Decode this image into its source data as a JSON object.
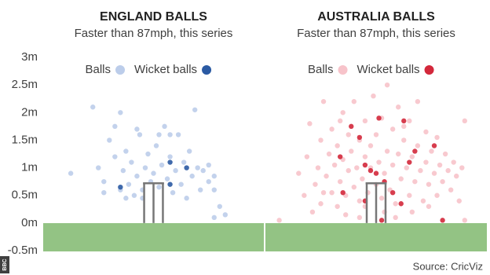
{
  "source": "Source: CricViz",
  "logo": "BBC",
  "chart_data": [
    {
      "type": "scatter",
      "title": "ENGLAND BALLS",
      "subtitle": "Faster than 87mph, this series",
      "xlim": [
        -2,
        2
      ],
      "ylim": [
        -0.5,
        3
      ],
      "yticks": [
        {
          "value": 3,
          "label": "3m"
        },
        {
          "value": 2.5,
          "label": "2.5m"
        },
        {
          "value": 2,
          "label": "2m"
        },
        {
          "value": 1.5,
          "label": "1.5m"
        },
        {
          "value": 1,
          "label": "1m"
        },
        {
          "value": 0.5,
          "label": "0.5m"
        },
        {
          "value": 0,
          "label": "0m"
        },
        {
          "value": -0.5,
          "label": "-0.5m"
        }
      ],
      "series": [
        {
          "name": "Balls",
          "color": "#bccdea",
          "x": [
            -1.5,
            -1.1,
            -0.9,
            -0.8,
            -0.7,
            -0.6,
            -0.55,
            -0.5,
            -0.45,
            -0.4,
            -0.35,
            -0.3,
            -0.25,
            -0.2,
            -0.15,
            -0.1,
            -0.05,
            0,
            0.05,
            0.1,
            0.15,
            0.2,
            0.25,
            0.3,
            0.35,
            0.4,
            0.45,
            0.5,
            0.55,
            0.6,
            0.65,
            0.7,
            0.75,
            0.8,
            0.85,
            0.9,
            1.0,
            1.0,
            1.1,
            1.2,
            1.3,
            1.1,
            -1.0,
            -0.9,
            -0.7,
            -0.6,
            -0.3,
            0.3,
            0.1,
            -0.2,
            1.1,
            -0.5
          ],
          "values": [
            0.9,
            2.1,
            0.55,
            1.5,
            1.75,
            2.0,
            0.95,
            1.3,
            0.7,
            1.1,
            0.5,
            0.85,
            1.6,
            0.6,
            1.0,
            1.25,
            0.75,
            0.9,
            1.4,
            0.65,
            1.05,
            1.75,
            0.8,
            1.2,
            0.55,
            0.95,
            1.6,
            0.7,
            1.1,
            0.45,
            1.3,
            0.85,
            2.05,
            1.0,
            0.6,
            0.95,
            0.75,
            1.05,
            0.85,
            0.3,
            0.15,
            0.6,
            1.0,
            0.75,
            1.2,
            0.6,
            1.7,
            1.6,
            1.6,
            0.45,
            0.1,
            0.45
          ]
        },
        {
          "name": "Wicket balls",
          "color": "#2b5aa3",
          "x": [
            0.3,
            0.6,
            -0.6,
            0.3
          ],
          "values": [
            1.1,
            1.0,
            0.65,
            0.7
          ]
        }
      ]
    },
    {
      "type": "scatter",
      "title": "AUSTRALIA BALLS",
      "subtitle": "Faster than 87mph, this series",
      "xlim": [
        -2,
        2
      ],
      "ylim": [
        -0.5,
        3
      ],
      "series": [
        {
          "name": "Balls",
          "color": "#f7c3ca",
          "x": [
            -1.75,
            -1.4,
            -1.3,
            -1.25,
            -1.2,
            -1.1,
            -1.05,
            -1.0,
            -1.0,
            -0.95,
            -0.9,
            -0.85,
            -0.8,
            -0.8,
            -0.75,
            -0.7,
            -0.7,
            -0.65,
            -0.6,
            -0.6,
            -0.55,
            -0.5,
            -0.5,
            -0.45,
            -0.4,
            -0.4,
            -0.35,
            -0.3,
            -0.3,
            -0.25,
            -0.2,
            -0.2,
            -0.15,
            -0.1,
            -0.1,
            -0.05,
            0,
            0,
            0.05,
            0.1,
            0.1,
            0.15,
            0.2,
            0.2,
            0.25,
            0.3,
            0.3,
            0.35,
            0.4,
            0.4,
            0.45,
            0.5,
            0.55,
            0.6,
            0.6,
            0.65,
            0.7,
            0.75,
            0.75,
            0.8,
            0.85,
            0.9,
            0.9,
            0.95,
            1.0,
            1.05,
            1.1,
            1.1,
            1.15,
            1.2,
            1.25,
            1.3,
            1.35,
            1.4,
            1.45,
            1.5,
            1.55,
            1.6,
            1.6,
            -1.15,
            -0.55,
            0.15,
            0.65,
            -0.3,
            0.35,
            -0.95,
            0.95,
            -0.2,
            0.5,
            -0.65
          ],
          "values": [
            0.05,
            0.9,
            0.5,
            1.2,
            1.8,
            0.7,
            1.0,
            0.35,
            1.5,
            2.2,
            0.85,
            1.25,
            0.55,
            1.7,
            1.05,
            0.3,
            1.4,
            0.75,
            2.0,
            1.15,
            0.5,
            0.95,
            1.6,
            1.3,
            0.65,
            2.2,
            1.0,
            0.4,
            1.5,
            0.8,
            1.2,
            1.85,
            0.55,
            1.0,
            1.4,
            2.3,
            0.7,
            1.6,
            1.1,
            0.45,
            1.9,
            0.9,
            1.3,
            2.5,
            0.6,
            1.05,
            1.7,
            0.35,
            1.25,
            2.1,
            0.8,
            1.5,
            1.0,
            0.5,
            1.85,
            1.2,
            0.75,
            2.2,
            1.4,
            0.95,
            0.4,
            1.65,
            1.1,
            0.7,
            1.3,
            0.9,
            0.5,
            1.55,
            1.05,
            0.75,
            1.25,
            0.95,
            0.6,
            1.1,
            0.85,
            0.4,
            1.0,
            0.05,
            1.85,
            0.2,
            0.15,
            0.2,
            0.2,
            0.1,
            0.1,
            0.55,
            0.3,
            0.3,
            1.75,
            1.85
          ]
        },
        {
          "name": "Wicket balls",
          "color": "#d3283b",
          "x": [
            -0.45,
            -0.3,
            -0.65,
            0.05,
            0.5,
            -0.2,
            0.15,
            -0.6,
            -0.1,
            0.3,
            0.1,
            -0.2,
            0.6,
            0.7,
            0.45,
            1.05,
            1.2,
            0.0
          ],
          "values": [
            1.75,
            1.55,
            1.2,
            1.9,
            1.85,
            1.05,
            0.75,
            0.55,
            0.95,
            0.55,
            0.05,
            0.4,
            1.1,
            1.3,
            0.35,
            1.4,
            0.05,
            0.9
          ]
        }
      ]
    }
  ]
}
